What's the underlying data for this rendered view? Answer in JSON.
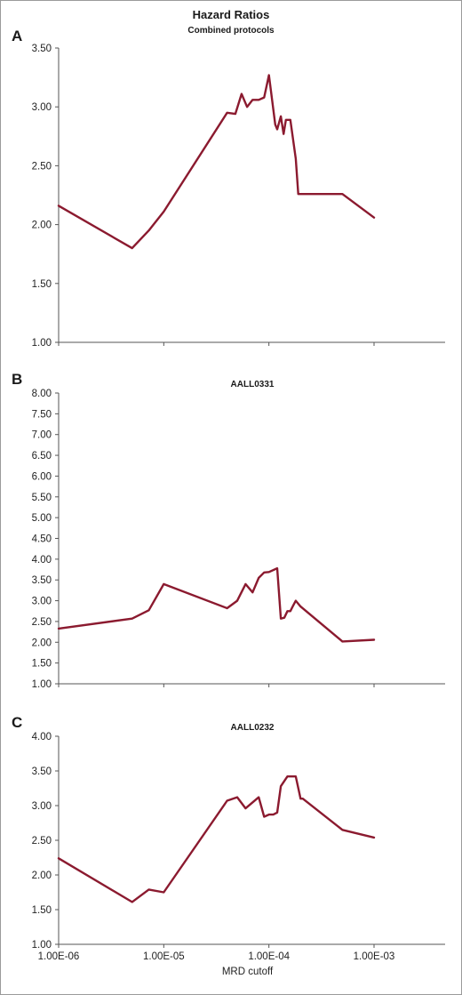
{
  "figure": {
    "title": "Hazard Ratios"
  },
  "colors": {
    "series": "#8b1a2f",
    "axis": "#555555"
  },
  "chart_data": [
    {
      "type": "line",
      "panel": "A",
      "title": "",
      "subtitle": "Combined protocols",
      "xscale": "log",
      "xlim": [
        1e-06,
        0.001
      ],
      "ylim": [
        1.0,
        3.5
      ],
      "yticks": [
        "1.00",
        "1.50",
        "2.00",
        "2.50",
        "3.00",
        "3.50"
      ],
      "xticks": [],
      "xlabel": "",
      "grid": false,
      "series": [
        {
          "x": [
            1e-06,
            5e-06,
            7.2e-06,
            1e-05,
            4e-05,
            4.8e-05,
            5.5e-05,
            6.2e-05,
            7e-05,
            8e-05,
            9e-05,
            0.0001,
            0.000115,
            0.00012,
            0.00013,
            0.000138,
            0.000145,
            0.00016,
            0.00018,
            0.00019,
            0.0002,
            0.00021,
            0.0005,
            0.001
          ],
          "y": [
            2.16,
            1.8,
            1.95,
            2.11,
            2.95,
            2.94,
            3.11,
            3.0,
            3.06,
            3.06,
            3.08,
            3.27,
            2.85,
            2.81,
            2.92,
            2.77,
            2.89,
            2.89,
            2.56,
            2.26,
            2.26,
            2.26,
            2.26,
            2.06
          ]
        }
      ]
    },
    {
      "type": "line",
      "panel": "B",
      "title": "AALL0331",
      "xscale": "log",
      "xlim": [
        1e-06,
        0.001
      ],
      "ylim": [
        1.0,
        8.0
      ],
      "yticks": [
        "1.00",
        "1.50",
        "2.00",
        "2.50",
        "3.00",
        "3.50",
        "4.00",
        "4.50",
        "5.00",
        "5.50",
        "6.00",
        "6.50",
        "7.00",
        "7.50",
        "8.00"
      ],
      "xticks": [],
      "xlabel": "",
      "grid": false,
      "series": [
        {
          "x": [
            1e-06,
            5e-06,
            7.2e-06,
            1e-05,
            4e-05,
            5e-05,
            6e-05,
            7e-05,
            8e-05,
            9e-05,
            0.0001,
            0.00012,
            0.00013,
            0.00014,
            0.00015,
            0.00016,
            0.00017,
            0.00018,
            0.0002,
            0.0005,
            0.001
          ],
          "y": [
            2.33,
            2.57,
            2.77,
            3.4,
            2.82,
            3.0,
            3.4,
            3.2,
            3.55,
            3.68,
            3.69,
            3.78,
            2.57,
            2.59,
            2.75,
            2.75,
            2.88,
            3.0,
            2.86,
            2.02,
            2.06
          ]
        }
      ]
    },
    {
      "type": "line",
      "panel": "C",
      "title": "AALL0232",
      "xscale": "log",
      "xlim": [
        1e-06,
        0.001
      ],
      "ylim": [
        1.0,
        4.0
      ],
      "yticks": [
        "1.00",
        "1.50",
        "2.00",
        "2.50",
        "3.00",
        "3.50",
        "4.00"
      ],
      "xticks": [
        "1.00E-06",
        "1.00E-05",
        "1.00E-04",
        "1.00E-03"
      ],
      "xlabel": "MRD cutoff",
      "grid": false,
      "series": [
        {
          "x": [
            1e-06,
            5e-06,
            7.2e-06,
            1e-05,
            4e-05,
            5e-05,
            6e-05,
            8e-05,
            9e-05,
            0.0001,
            0.00011,
            0.00012,
            0.00013,
            0.00015,
            0.00018,
            0.0002,
            0.00021,
            0.0005,
            0.001
          ],
          "y": [
            2.24,
            1.61,
            1.79,
            1.75,
            3.07,
            3.12,
            2.96,
            3.12,
            2.84,
            2.87,
            2.87,
            2.9,
            3.28,
            3.42,
            3.42,
            3.1,
            3.1,
            2.65,
            2.54
          ]
        }
      ]
    }
  ]
}
